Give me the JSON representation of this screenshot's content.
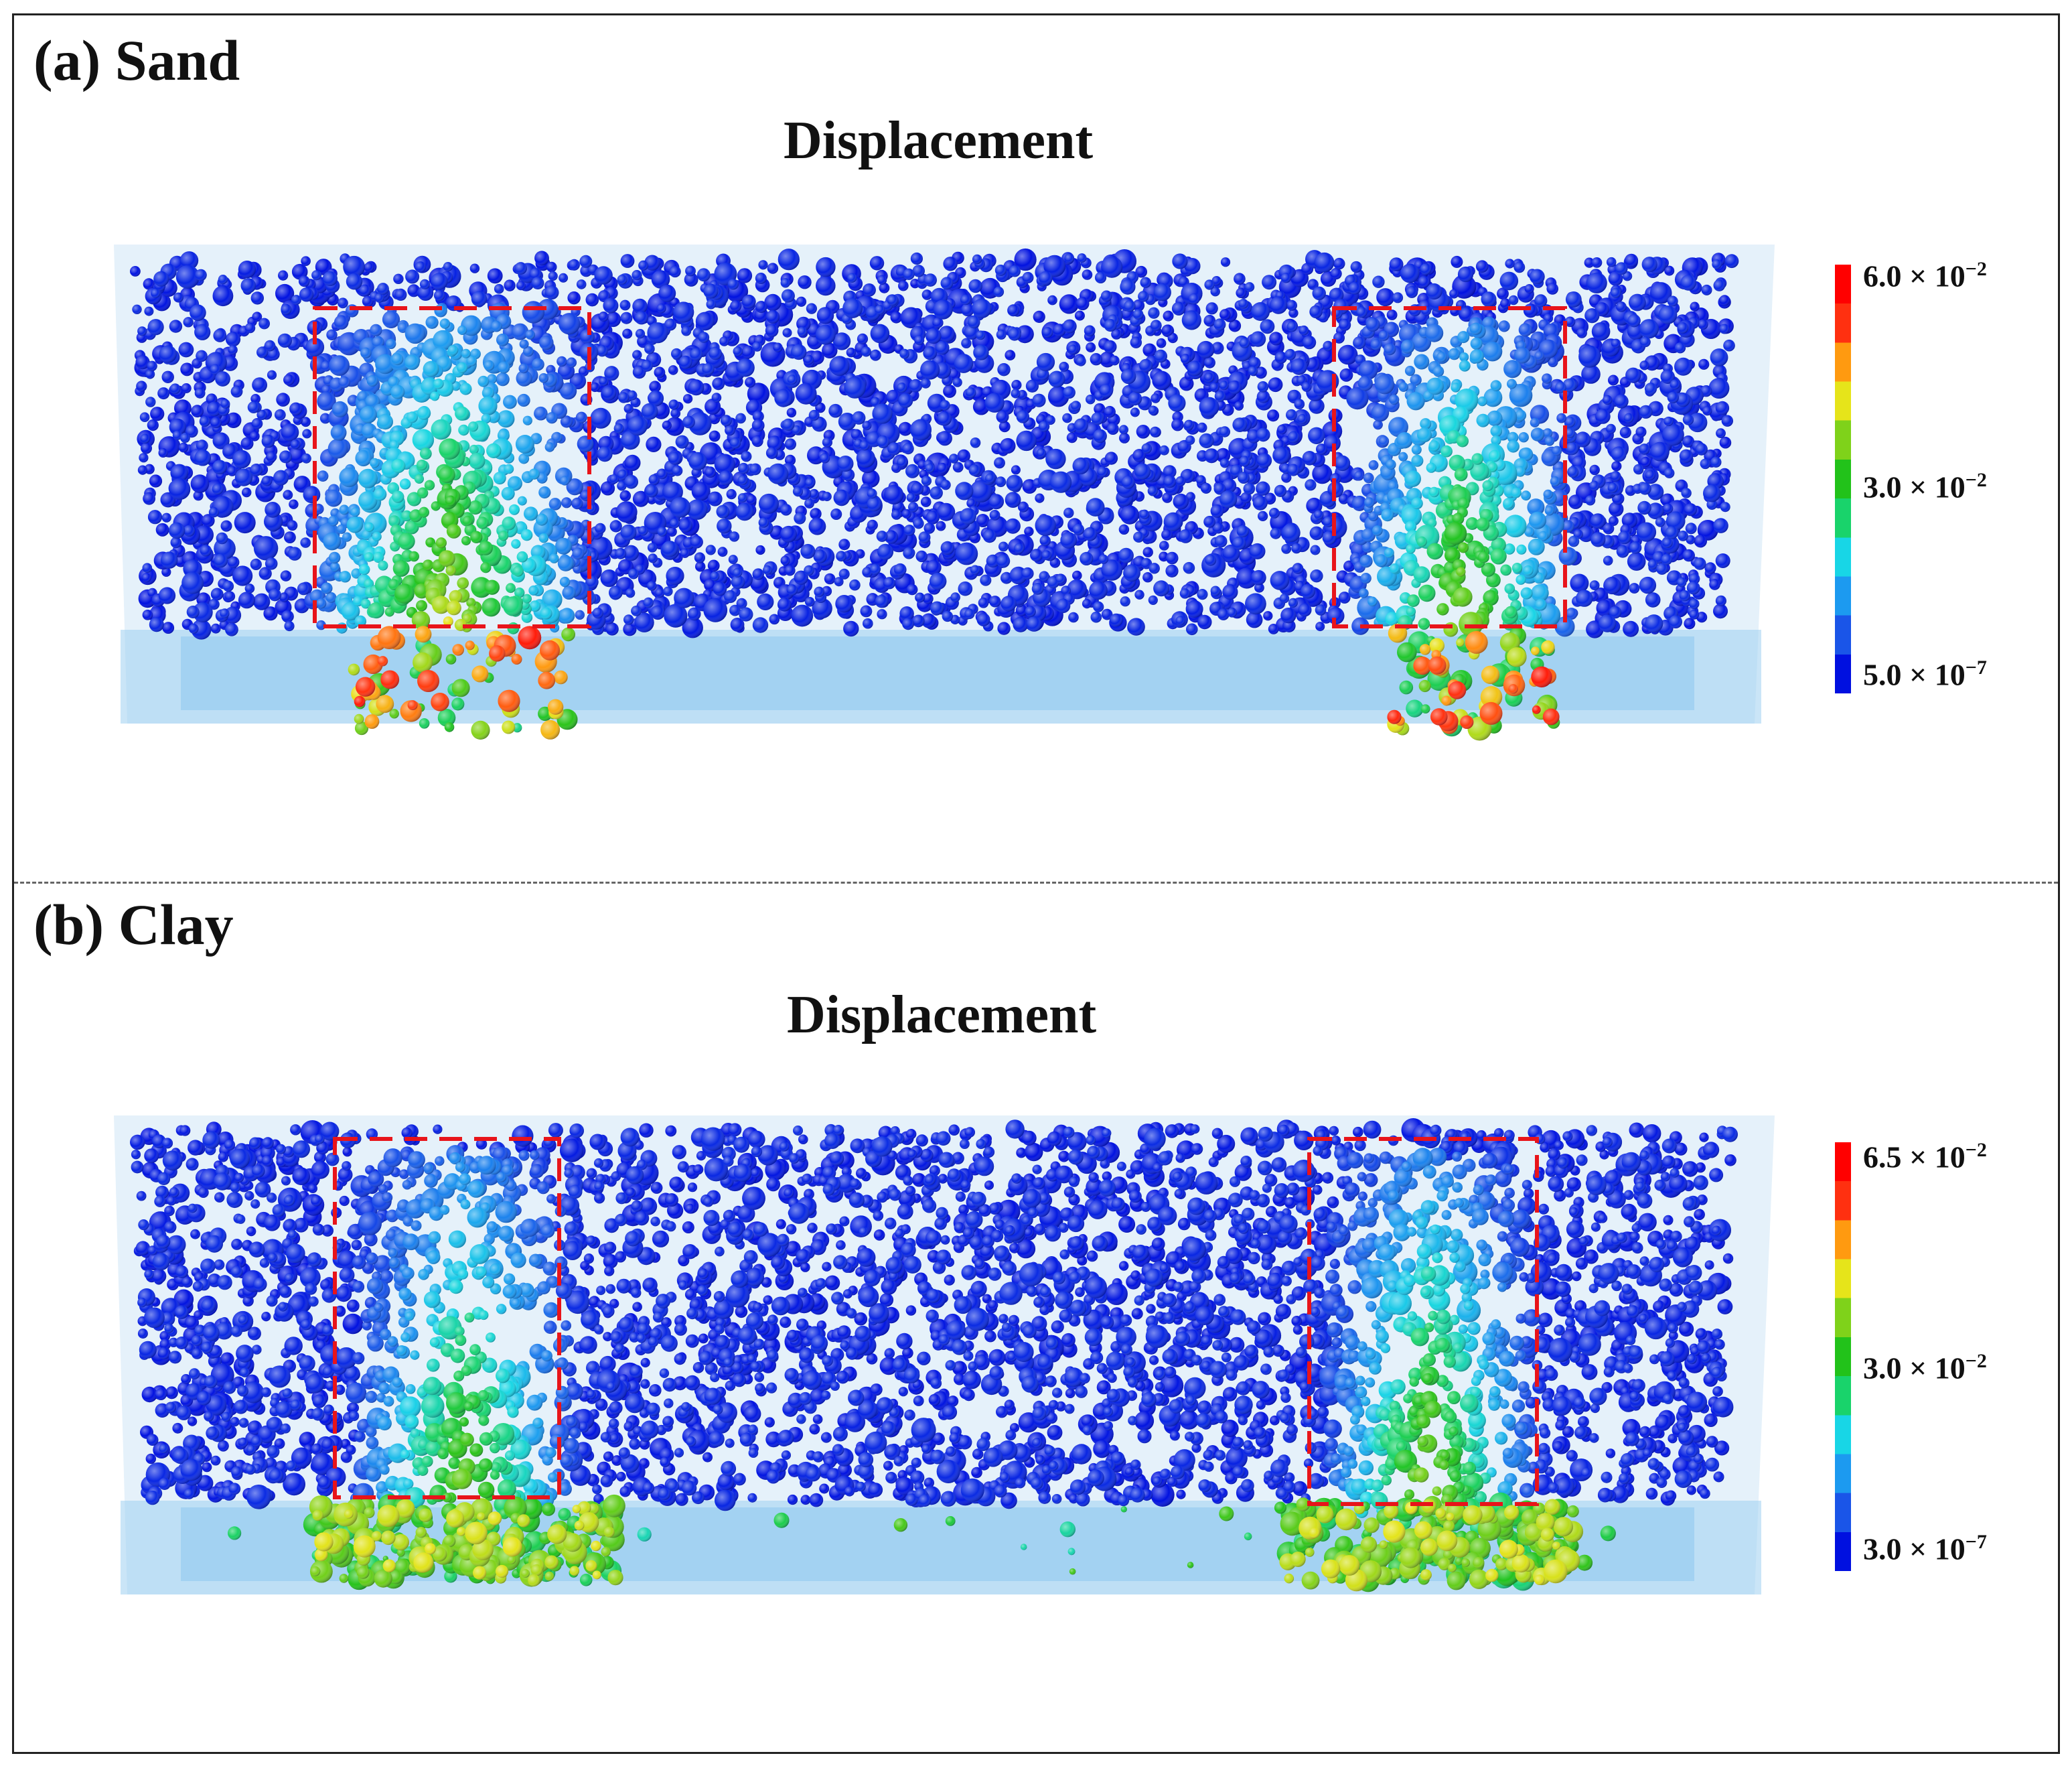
{
  "panels": [
    {
      "label": "(a) Sand",
      "title": "Displacement",
      "colorbar": {
        "max": {
          "mantissa": "6.0 × 10",
          "exponent": "−2"
        },
        "mid": {
          "mantissa": "3.0 × 10",
          "exponent": "−2"
        },
        "min": {
          "mantissa": "5.0 × 10",
          "exponent": "−7"
        }
      }
    },
    {
      "label": "(b) Clay",
      "title": "Displacement",
      "colorbar": {
        "max": {
          "mantissa": "6.5 × 10",
          "exponent": "−2"
        },
        "mid": {
          "mantissa": "3.0 × 10",
          "exponent": "−2"
        },
        "min": {
          "mantissa": "3.0 × 10",
          "exponent": "−7"
        }
      }
    }
  ],
  "colors": {
    "colorbar_stops": [
      "#0010e0",
      "#1a55e8",
      "#1c9af0",
      "#18d6e6",
      "#19d36b",
      "#22c21a",
      "#7fd21a",
      "#e6e41a",
      "#ff9a10",
      "#ff3010",
      "#ff0000"
    ],
    "highlight_box": "#e8141a",
    "container": "#cfe6f5",
    "particle_base": "#0a1fd0"
  }
}
